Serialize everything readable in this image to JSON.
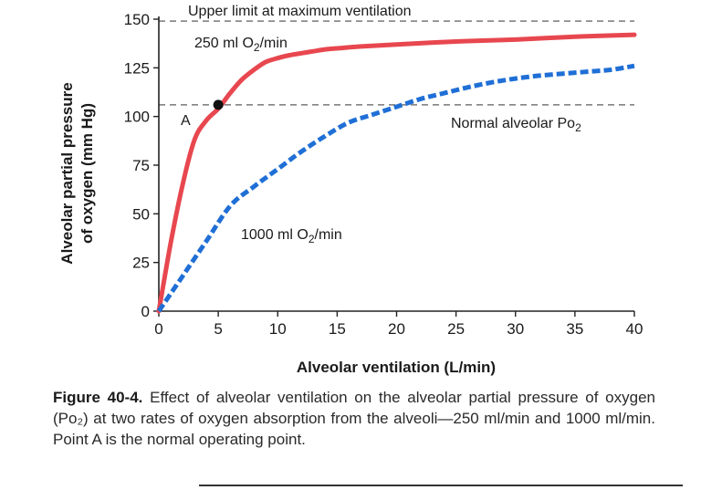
{
  "chart_data": {
    "type": "line",
    "xlabel": "Alveolar ventilation (L/min)",
    "ylabel": [
      "Alveolar partial pressure",
      "of oxygen (mm Hg)"
    ],
    "xlim": [
      0,
      40
    ],
    "ylim": [
      0,
      150
    ],
    "x_ticks": [
      0,
      5,
      10,
      15,
      20,
      25,
      30,
      35,
      40
    ],
    "y_ticks": [
      0,
      25,
      50,
      75,
      100,
      125,
      150
    ],
    "series": [
      {
        "name": "250 ml O2/min",
        "style": "solid",
        "color": "#e8474f",
        "x": [
          0,
          1,
          2,
          3,
          4,
          5,
          6,
          7,
          8,
          9,
          10,
          11,
          12,
          13,
          14,
          15,
          17,
          20,
          25,
          30,
          35,
          40
        ],
        "y": [
          0,
          35,
          65,
          88,
          98,
          104,
          112,
          119,
          124,
          128,
          130,
          131.5,
          132.5,
          133.5,
          134.5,
          135,
          136,
          137,
          138.5,
          139.5,
          141,
          142
        ]
      },
      {
        "name": "1000 ml O2/min",
        "style": "dashed",
        "color": "#1f6fd6",
        "x": [
          0,
          2,
          4,
          6,
          8,
          10,
          12,
          14,
          16,
          18,
          20,
          22,
          24,
          26,
          28,
          30,
          32,
          34,
          36,
          38,
          40
        ],
        "y": [
          0,
          18,
          36,
          54,
          64,
          73,
          82,
          90,
          97,
          101,
          105,
          109,
          112,
          115,
          117.5,
          119.5,
          121,
          122,
          123,
          124,
          126
        ]
      }
    ],
    "reference_lines": [
      {
        "y": 149,
        "label": "Upper limit at maximum ventilation"
      },
      {
        "y": 106,
        "label": "Normal alveolar Po2"
      }
    ],
    "points": [
      {
        "x": 5,
        "y": 106,
        "label": "A"
      }
    ],
    "annotations": {
      "upper_limit": {
        "main": "Upper limit at maximum ventilation"
      },
      "series_250": {
        "prefix": "250 ml O",
        "sub": "2",
        "suffix": "/min"
      },
      "series_1000": {
        "prefix": "1000 ml O",
        "sub": "2",
        "suffix": "/min"
      },
      "normal": {
        "prefix": "Normal alveolar Po",
        "sub": "2"
      },
      "point_label": "A"
    }
  },
  "caption": {
    "label": "Figure 40-4.",
    "text": " Effect of alveolar ventilation on the alveolar partial pressure of oxygen (Po₂) at two rates of oxygen absorption from the alveoli—250 ml/min and 1000 ml/min. Point A is the normal operating point."
  },
  "colors": {
    "red": "#e8474f",
    "blue": "#1f6fd6",
    "dash_gray": "#777777"
  }
}
